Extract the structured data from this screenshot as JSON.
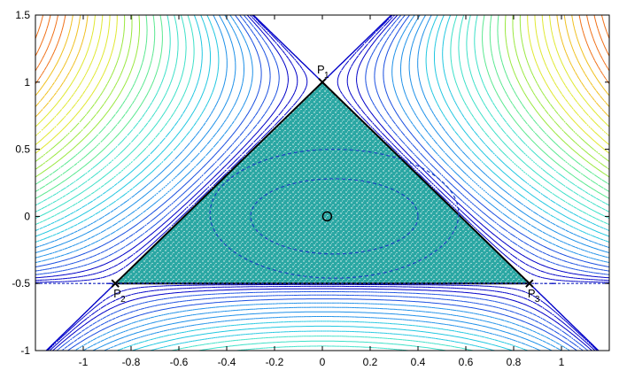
{
  "chart_data": {
    "type": "contour",
    "xlim": [
      -1.2,
      1.2
    ],
    "ylim": [
      -1,
      1.5
    ],
    "xticks": [
      -1,
      -0.8,
      -0.6,
      -0.4,
      -0.2,
      0,
      0.2,
      0.4,
      0.6,
      0.8,
      1
    ],
    "xtick_labels": [
      "-1",
      "-0.8",
      "-0.6",
      "-0.4",
      "-0.2",
      "0",
      "0.2",
      "0.4",
      "0.6",
      "0.8",
      "1"
    ],
    "yticks": [
      1.5,
      1,
      0.5,
      0,
      -0.5,
      -1
    ],
    "ytick_labels": [
      "1.5",
      "1",
      "0.5",
      "0",
      "-0.5",
      "-1"
    ],
    "grid": false,
    "separatrix_triangle": {
      "vertices": [
        [
          0,
          1
        ],
        [
          -0.866,
          -0.5
        ],
        [
          0.866,
          -0.5
        ]
      ],
      "fill_color": "#2aa7a3",
      "edge_color": "#000000"
    },
    "points": [
      {
        "name": "P1",
        "label": "P",
        "subscript": "1",
        "x": 0,
        "y": 1
      },
      {
        "name": "P2",
        "label": "P",
        "subscript": "2",
        "x": -0.866,
        "y": -0.5
      },
      {
        "name": "P3",
        "label": "P",
        "subscript": "3",
        "x": 0.866,
        "y": -0.5
      },
      {
        "name": "O",
        "label": "O",
        "x": 0.02,
        "y": 0
      }
    ],
    "inner_orbits": [
      {
        "rx": 0.52,
        "ry": 0.48,
        "cx": 0.05,
        "cy": 0.02
      },
      {
        "rx": 0.35,
        "ry": 0.28,
        "cx": 0.05,
        "cy": 0.0
      }
    ],
    "contour_colors": [
      "#0000c8",
      "#1a4fe0",
      "#1e90e8",
      "#22c7e0",
      "#3de0c8",
      "#5ae890",
      "#9ae840",
      "#e0e830",
      "#f0c020",
      "#f07018",
      "#d01010",
      "#a00000"
    ]
  }
}
